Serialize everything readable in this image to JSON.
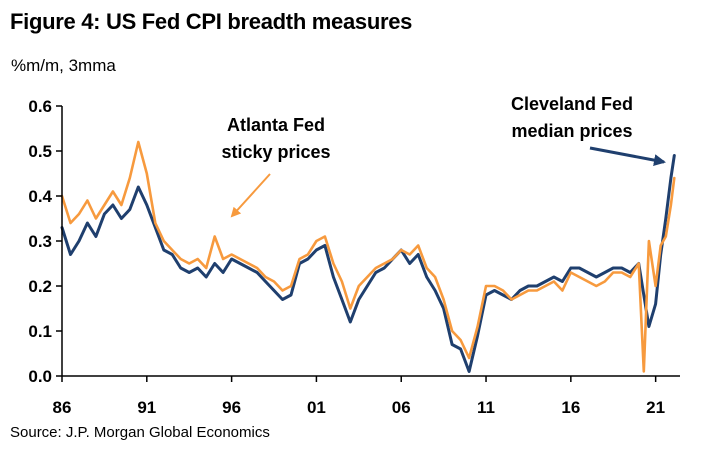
{
  "chart_data": {
    "type": "line",
    "title": "Figure 4: US Fed CPI breadth measures",
    "subtitle": "%m/m, 3mma",
    "source": "Source: J.P. Morgan Global Economics",
    "xlabel": "",
    "ylabel": "",
    "xlim": [
      1986,
      2022.2
    ],
    "ylim": [
      0,
      0.6
    ],
    "x_ticks": [
      1986,
      1991,
      1996,
      2001,
      2006,
      2011,
      2016,
      2021
    ],
    "x_tick_labels": [
      "86",
      "91",
      "96",
      "01",
      "06",
      "11",
      "16",
      "21"
    ],
    "y_ticks": [
      0.0,
      0.1,
      0.2,
      0.3,
      0.4,
      0.5,
      0.6
    ],
    "y_tick_labels": [
      "0.0",
      "0.1",
      "0.2",
      "0.3",
      "0.4",
      "0.5",
      "0.6"
    ],
    "grid": false,
    "legend": "none",
    "annotations": [
      {
        "lines": [
          "Atlanta Fed",
          "sticky prices"
        ],
        "series": "Atlanta Fed sticky prices",
        "color": "#F79A3E"
      },
      {
        "lines": [
          "Cleveland Fed",
          "median prices"
        ],
        "series": "Cleveland Fed median prices",
        "color": "#1F3F6E"
      }
    ],
    "series": [
      {
        "name": "Cleveland Fed median prices",
        "color": "#1F3F6E",
        "x": [
          1986.0,
          1986.5,
          1987.0,
          1987.5,
          1988.0,
          1988.5,
          1989.0,
          1989.5,
          1990.0,
          1990.5,
          1991.0,
          1991.5,
          1992.0,
          1992.5,
          1993.0,
          1993.5,
          1994.0,
          1994.5,
          1995.0,
          1995.5,
          1996.0,
          1996.5,
          1997.0,
          1997.5,
          1998.0,
          1998.5,
          1999.0,
          1999.5,
          2000.0,
          2000.5,
          2001.0,
          2001.5,
          2002.0,
          2002.5,
          2003.0,
          2003.5,
          2004.0,
          2004.5,
          2005.0,
          2005.5,
          2006.0,
          2006.5,
          2007.0,
          2007.5,
          2008.0,
          2008.5,
          2009.0,
          2009.5,
          2010.0,
          2010.5,
          2011.0,
          2011.5,
          2012.0,
          2012.5,
          2013.0,
          2013.5,
          2014.0,
          2014.5,
          2015.0,
          2015.5,
          2016.0,
          2016.5,
          2017.0,
          2017.5,
          2018.0,
          2018.5,
          2019.0,
          2019.5,
          2020.0,
          2020.3,
          2020.6,
          2021.0,
          2021.3,
          2021.6,
          2021.9,
          2022.1
        ],
        "y": [
          0.33,
          0.27,
          0.3,
          0.34,
          0.31,
          0.36,
          0.38,
          0.35,
          0.37,
          0.42,
          0.38,
          0.33,
          0.28,
          0.27,
          0.24,
          0.23,
          0.24,
          0.22,
          0.25,
          0.23,
          0.26,
          0.25,
          0.24,
          0.23,
          0.21,
          0.19,
          0.17,
          0.18,
          0.25,
          0.26,
          0.28,
          0.29,
          0.22,
          0.17,
          0.12,
          0.17,
          0.2,
          0.23,
          0.24,
          0.26,
          0.28,
          0.25,
          0.27,
          0.22,
          0.19,
          0.15,
          0.07,
          0.06,
          0.01,
          0.09,
          0.18,
          0.19,
          0.18,
          0.17,
          0.19,
          0.2,
          0.2,
          0.21,
          0.22,
          0.21,
          0.24,
          0.24,
          0.23,
          0.22,
          0.23,
          0.24,
          0.24,
          0.23,
          0.25,
          0.18,
          0.11,
          0.16,
          0.27,
          0.35,
          0.44,
          0.49
        ]
      },
      {
        "name": "Atlanta Fed sticky prices",
        "color": "#F79A3E",
        "x": [
          1986.0,
          1986.5,
          1987.0,
          1987.5,
          1988.0,
          1988.5,
          1989.0,
          1989.5,
          1990.0,
          1990.5,
          1991.0,
          1991.5,
          1992.0,
          1992.5,
          1993.0,
          1993.5,
          1994.0,
          1994.5,
          1995.0,
          1995.5,
          1996.0,
          1996.5,
          1997.0,
          1997.5,
          1998.0,
          1998.5,
          1999.0,
          1999.5,
          2000.0,
          2000.5,
          2001.0,
          2001.5,
          2002.0,
          2002.5,
          2003.0,
          2003.5,
          2004.0,
          2004.5,
          2005.0,
          2005.5,
          2006.0,
          2006.5,
          2007.0,
          2007.5,
          2008.0,
          2008.5,
          2009.0,
          2009.5,
          2010.0,
          2010.5,
          2011.0,
          2011.5,
          2012.0,
          2012.5,
          2013.0,
          2013.5,
          2014.0,
          2014.5,
          2015.0,
          2015.5,
          2016.0,
          2016.5,
          2017.0,
          2017.5,
          2018.0,
          2018.5,
          2019.0,
          2019.5,
          2020.0,
          2020.3,
          2020.6,
          2021.0,
          2021.3,
          2021.6,
          2021.9,
          2022.1
        ],
        "y": [
          0.4,
          0.34,
          0.36,
          0.39,
          0.35,
          0.38,
          0.41,
          0.38,
          0.44,
          0.52,
          0.45,
          0.34,
          0.3,
          0.28,
          0.26,
          0.25,
          0.26,
          0.24,
          0.31,
          0.26,
          0.27,
          0.26,
          0.25,
          0.24,
          0.22,
          0.21,
          0.19,
          0.2,
          0.26,
          0.27,
          0.3,
          0.31,
          0.25,
          0.21,
          0.15,
          0.2,
          0.22,
          0.24,
          0.25,
          0.26,
          0.28,
          0.27,
          0.29,
          0.24,
          0.22,
          0.17,
          0.1,
          0.08,
          0.04,
          0.11,
          0.2,
          0.2,
          0.19,
          0.17,
          0.18,
          0.19,
          0.19,
          0.2,
          0.21,
          0.19,
          0.23,
          0.22,
          0.21,
          0.2,
          0.21,
          0.23,
          0.23,
          0.22,
          0.25,
          0.01,
          0.3,
          0.2,
          0.29,
          0.31,
          0.38,
          0.44
        ]
      }
    ]
  }
}
